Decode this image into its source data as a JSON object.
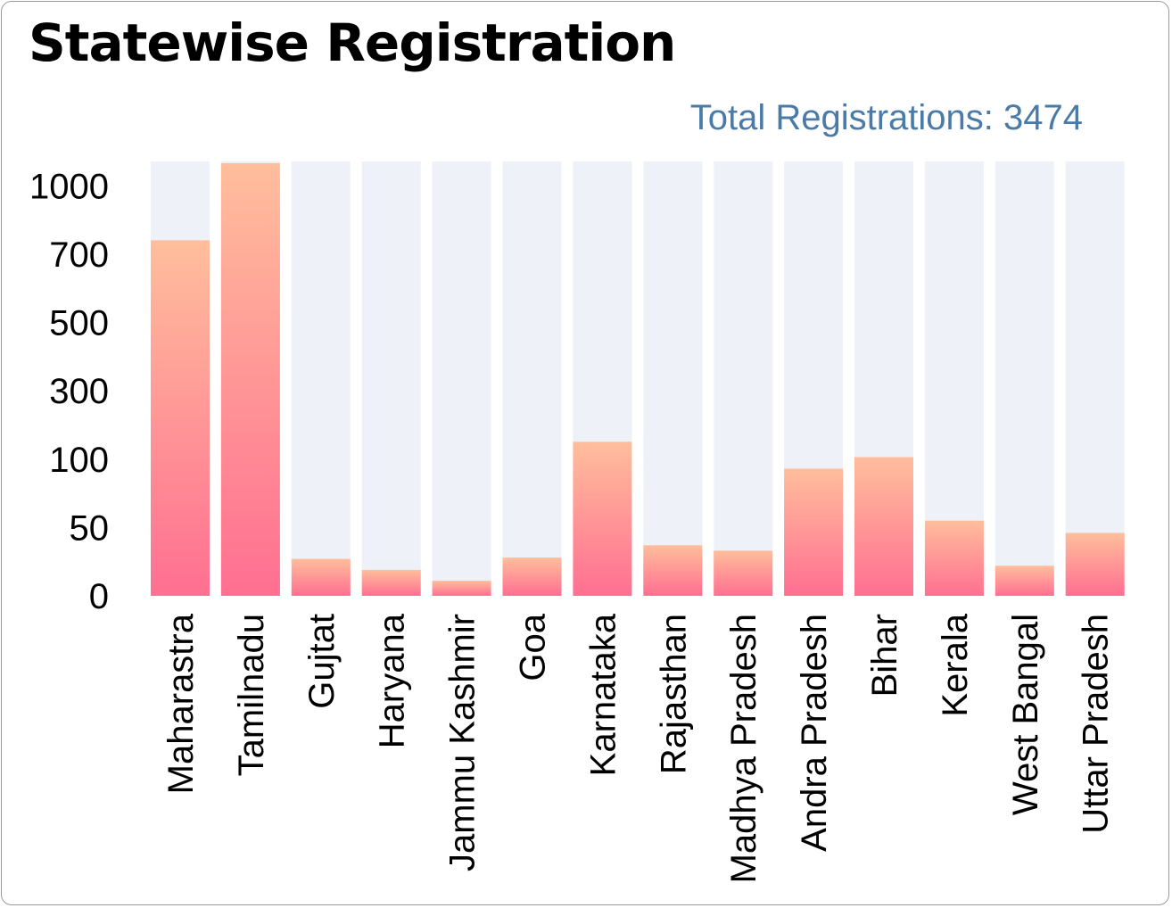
{
  "chart_data": {
    "type": "bar",
    "title": "Statewise Registration",
    "subtitle": "Total Registrations: 3474",
    "xlabel": "",
    "ylabel": "",
    "y_scale": "nonlinear",
    "yticks": [
      0,
      50,
      100,
      300,
      500,
      700,
      1000
    ],
    "ylim": [
      0,
      1100
    ],
    "grid": false,
    "legend": "none",
    "categories": [
      "Maharastra",
      "Tamilnadu",
      "Gujtat",
      "Haryana",
      "Jammu Kashmir",
      "Goa",
      "Karnataka",
      "Rajasthan",
      "Madhya Pradesh",
      "Andra Pradesh",
      "Bihar",
      "Kerala",
      "West Bangal",
      "Uttar Pradesh"
    ],
    "series": [
      {
        "values": [
          761,
          1100,
          27,
          19,
          11,
          28,
          151,
          37,
          33,
          93,
          106,
          55,
          22,
          46
        ]
      }
    ],
    "colors": {
      "bar_top": "#ffbe9c",
      "bar_bottom": "#ff6f91",
      "track": "#eef1f8",
      "total_text": "#4a7aa8"
    }
  }
}
